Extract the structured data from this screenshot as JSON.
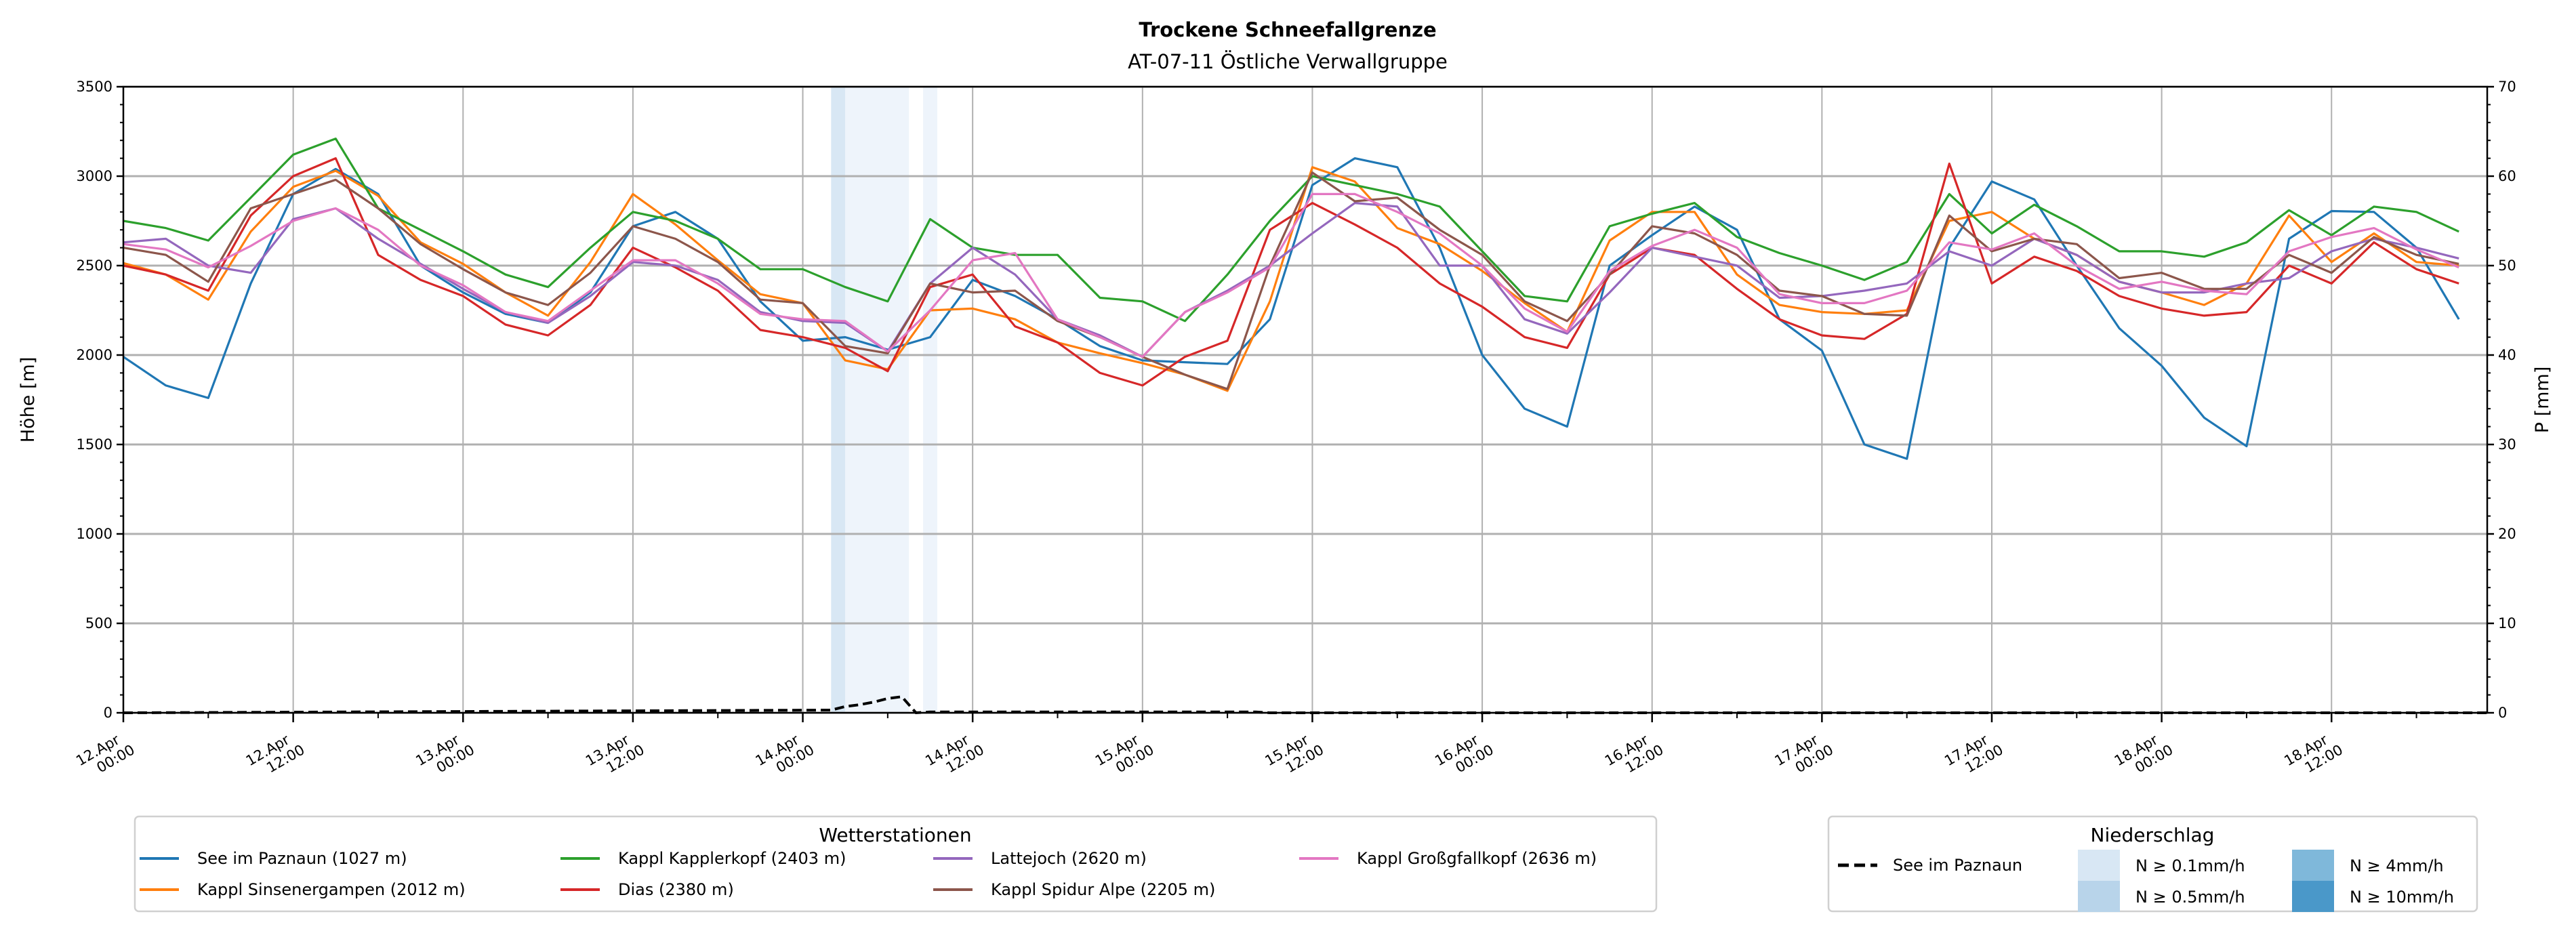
{
  "chart_data": {
    "type": "line",
    "title": "Trockene Schneefallgrenze",
    "subtitle": "AT-07-11 Östliche Verwallgruppe",
    "ylabel": "Höhe [m]",
    "y2label": "P [mm]",
    "ylim": [
      0,
      3500
    ],
    "y2lim": [
      0,
      70
    ],
    "yticks": [
      "0",
      "500",
      "1000",
      "1500",
      "2000",
      "2500",
      "3000",
      "3500"
    ],
    "y2ticks": [
      "0",
      "10",
      "20",
      "30",
      "40",
      "50",
      "60",
      "70"
    ],
    "x_unit": "hours since 12.Apr 00:00",
    "xlim": [
      0,
      167
    ],
    "xticks": [
      {
        "h": 0,
        "l1": "12.Apr",
        "l2": "00:00"
      },
      {
        "h": 12,
        "l1": "12.Apr",
        "l2": "12:00"
      },
      {
        "h": 24,
        "l1": "13.Apr",
        "l2": "00:00"
      },
      {
        "h": 36,
        "l1": "13.Apr",
        "l2": "12:00"
      },
      {
        "h": 48,
        "l1": "14.Apr",
        "l2": "00:00"
      },
      {
        "h": 60,
        "l1": "14.Apr",
        "l2": "12:00"
      },
      {
        "h": 72,
        "l1": "15.Apr",
        "l2": "00:00"
      },
      {
        "h": 84,
        "l1": "15.Apr",
        "l2": "12:00"
      },
      {
        "h": 96,
        "l1": "16.Apr",
        "l2": "00:00"
      },
      {
        "h": 108,
        "l1": "16.Apr",
        "l2": "12:00"
      },
      {
        "h": 120,
        "l1": "17.Apr",
        "l2": "00:00"
      },
      {
        "h": 132,
        "l1": "17.Apr",
        "l2": "12:00"
      },
      {
        "h": 144,
        "l1": "18.Apr",
        "l2": "00:00"
      },
      {
        "h": 156,
        "l1": "18.Apr",
        "l2": "12:00"
      }
    ],
    "grid": true,
    "x_step_hours": 3,
    "series": [
      {
        "name": "See im Paznaun (1027 m)",
        "color": "#1f77b4",
        "values": [
          1990,
          1830,
          1760,
          2400,
          2900,
          3040,
          2900,
          2500,
          2350,
          2230,
          2180,
          2350,
          2720,
          2800,
          2650,
          2300,
          2080,
          2100,
          2030,
          2100,
          2420,
          2330,
          2200,
          2050,
          1970,
          1960,
          1950,
          2200,
          2950,
          3100,
          3050,
          2600,
          2000,
          1700,
          1600,
          2500,
          2670,
          2830,
          2700,
          2200,
          2025,
          1500,
          1420,
          2600,
          2970,
          2870,
          2500,
          2150,
          1940,
          1650,
          1490,
          2650,
          2805,
          2800,
          2600,
          2200
        ]
      },
      {
        "name": "Kappl Sinsenergampen (2012 m)",
        "color": "#ff7f0e",
        "values": [
          2514,
          2450,
          2310,
          2690,
          2940,
          3030,
          2890,
          2630,
          2510,
          2350,
          2220,
          2520,
          2900,
          2730,
          2530,
          2340,
          2290,
          1970,
          1920,
          2250,
          2260,
          2200,
          2070,
          2010,
          1955,
          1890,
          1800,
          2300,
          3050,
          2970,
          2710,
          2620,
          2470,
          2290,
          2130,
          2640,
          2800,
          2800,
          2450,
          2280,
          2240,
          2230,
          2250,
          2750,
          2800,
          2650,
          2560,
          2410,
          2350,
          2280,
          2400,
          2780,
          2520,
          2680,
          2520,
          2500
        ]
      },
      {
        "name": "Kappl Kapplerkopf (2403 m)",
        "color": "#2ca02c",
        "values": [
          2750,
          2710,
          2640,
          2880,
          3120,
          3210,
          2820,
          2700,
          2580,
          2450,
          2380,
          2600,
          2800,
          2750,
          2650,
          2480,
          2480,
          2380,
          2300,
          2760,
          2600,
          2560,
          2560,
          2320,
          2300,
          2190,
          2450,
          2750,
          3000,
          2950,
          2900,
          2830,
          2580,
          2330,
          2300,
          2720,
          2790,
          2850,
          2660,
          2570,
          2500,
          2420,
          2520,
          2900,
          2680,
          2840,
          2720,
          2580,
          2580,
          2550,
          2630,
          2810,
          2670,
          2830,
          2800,
          2690
        ]
      },
      {
        "name": "Dias (2380 m)",
        "color": "#d62728",
        "values": [
          2500,
          2450,
          2360,
          2780,
          3000,
          3100,
          2560,
          2420,
          2330,
          2170,
          2110,
          2280,
          2600,
          2490,
          2360,
          2140,
          2100,
          2040,
          1910,
          2380,
          2450,
          2160,
          2070,
          1900,
          1830,
          1990,
          2080,
          2700,
          2850,
          2730,
          2600,
          2400,
          2270,
          2100,
          2040,
          2450,
          2600,
          2560,
          2370,
          2200,
          2110,
          2090,
          2230,
          3070,
          2400,
          2550,
          2470,
          2330,
          2260,
          2220,
          2240,
          2500,
          2400,
          2630,
          2480,
          2400
        ]
      },
      {
        "name": "Lattejoch (2620 m)",
        "color": "#9467bd",
        "values": [
          2630,
          2650,
          2500,
          2460,
          2760,
          2820,
          2650,
          2510,
          2370,
          2240,
          2180,
          2330,
          2520,
          2500,
          2420,
          2240,
          2190,
          2180,
          2020,
          2400,
          2600,
          2450,
          2200,
          2110,
          1990,
          2240,
          2360,
          2500,
          2680,
          2850,
          2830,
          2500,
          2500,
          2200,
          2120,
          2350,
          2600,
          2550,
          2500,
          2320,
          2330,
          2360,
          2400,
          2580,
          2500,
          2650,
          2560,
          2410,
          2350,
          2350,
          2400,
          2430,
          2580,
          2650,
          2600,
          2540
        ]
      },
      {
        "name": "Kappl Spidur Alpe (2205 m)",
        "color": "#8c564b",
        "values": [
          2600,
          2560,
          2410,
          2820,
          2900,
          2980,
          2820,
          2620,
          2480,
          2350,
          2280,
          2460,
          2720,
          2650,
          2520,
          2310,
          2290,
          2050,
          2010,
          2400,
          2350,
          2360,
          2190,
          2100,
          1990,
          1890,
          1810,
          2500,
          3020,
          2860,
          2880,
          2700,
          2560,
          2300,
          2190,
          2450,
          2720,
          2680,
          2560,
          2360,
          2330,
          2230,
          2220,
          2780,
          2580,
          2650,
          2620,
          2430,
          2460,
          2370,
          2370,
          2560,
          2460,
          2660,
          2560,
          2510
        ]
      },
      {
        "name": "Kappl Großgfallkopf (2636 m)",
        "color": "#e377c2",
        "values": [
          2620,
          2590,
          2490,
          2610,
          2750,
          2820,
          2700,
          2500,
          2390,
          2240,
          2190,
          2360,
          2530,
          2530,
          2400,
          2230,
          2200,
          2190,
          2020,
          2250,
          2530,
          2570,
          2200,
          2100,
          1990,
          2240,
          2350,
          2490,
          2900,
          2900,
          2800,
          2680,
          2500,
          2260,
          2130,
          2470,
          2610,
          2700,
          2600,
          2340,
          2290,
          2290,
          2360,
          2630,
          2590,
          2680,
          2500,
          2370,
          2410,
          2360,
          2340,
          2580,
          2660,
          2710,
          2590,
          2490
        ]
      }
    ],
    "precip": {
      "name": "See im Paznaun",
      "color": "#000000",
      "hours": [
        0,
        50,
        51,
        52,
        53,
        54,
        55,
        56,
        57,
        80,
        81,
        167
      ],
      "values_mm": [
        0,
        0.3,
        0.7,
        0.9,
        1.2,
        1.6,
        1.8,
        0,
        0.1,
        0.1,
        0,
        0
      ]
    },
    "precip_bands": [
      {
        "start_h": 50,
        "end_h": 51,
        "color": "#d8e7f4"
      },
      {
        "start_h": 51,
        "end_h": 55.5,
        "color": "#eef4fb"
      },
      {
        "start_h": 56.5,
        "end_h": 57.5,
        "color": "#eef4fb"
      }
    ],
    "legend_stations": {
      "title": "Wetterstationen",
      "placement": "bottom-left"
    },
    "legend_precip": {
      "title": "Niederschlag",
      "placement": "bottom-right",
      "line_label": "See im Paznaun",
      "levels": [
        {
          "label": "N ≥ 0.1mm/h",
          "color": "#d8e7f4"
        },
        {
          "label": "N ≥ 0.5mm/h",
          "color": "#b8d4ea"
        },
        {
          "label": "N ≥ 4mm/h",
          "color": "#7fb8da"
        },
        {
          "label": "N ≥ 10mm/h",
          "color": "#4a98c9"
        }
      ]
    }
  }
}
